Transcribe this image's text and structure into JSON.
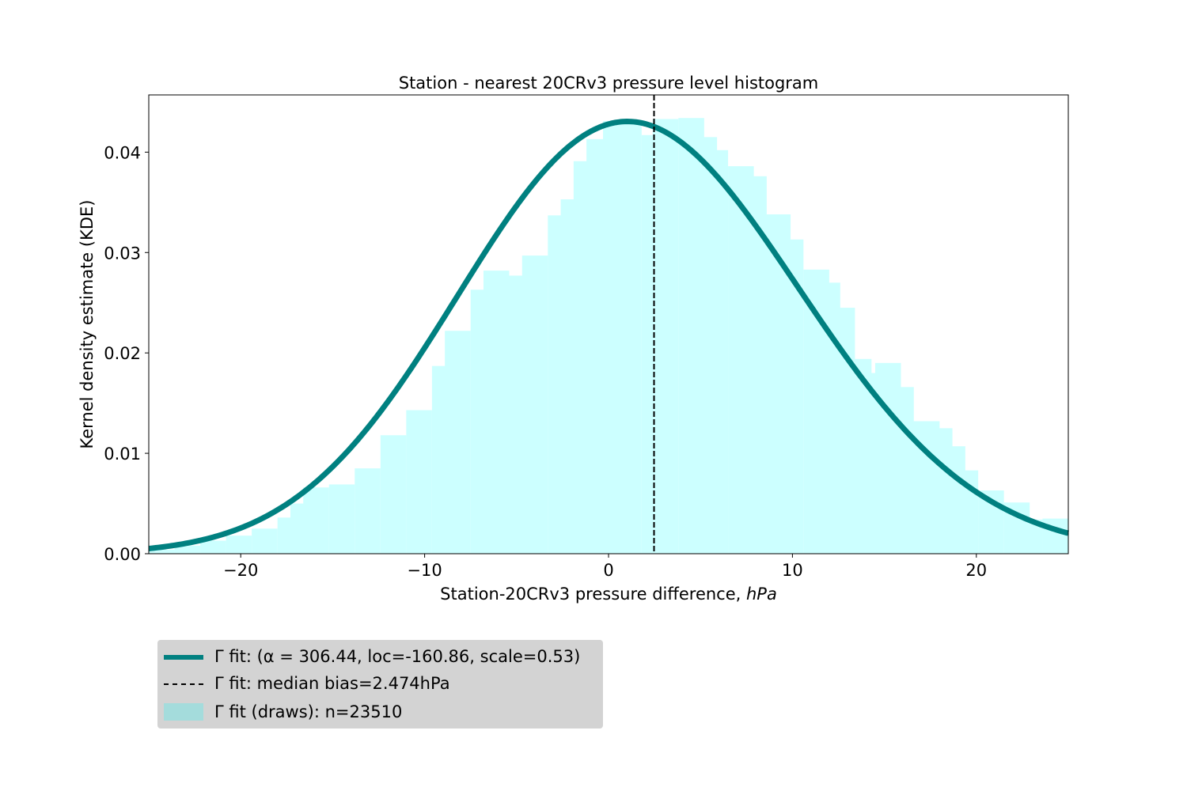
{
  "chart_data": {
    "type": "bar",
    "title": "Station - nearest 20CRv3 pressure level histogram",
    "xlabel": "Station-20CRv3 pressure difference, ",
    "xlabel_unit": "hPa",
    "ylabel": "Kernel density estimate (KDE)",
    "xlim": [
      -25,
      25
    ],
    "ylim": [
      0,
      0.0457
    ],
    "x_ticks": [
      -20,
      -10,
      0,
      10,
      20
    ],
    "x_tick_labels": [
      "−20",
      "−10",
      "0",
      "10",
      "20"
    ],
    "y_ticks": [
      0.0,
      0.01,
      0.02,
      0.03,
      0.04
    ],
    "y_tick_labels": [
      "0.00",
      "0.01",
      "0.02",
      "0.03",
      "0.04"
    ],
    "grid": false,
    "legend_placement": "below-left",
    "colors": {
      "fit_line": "#008080",
      "histogram": "#ccffff",
      "legend_patch": "#a4dcdc",
      "median_line": "#000000",
      "legend_bg": "#d3d3d3"
    },
    "histogram": {
      "bin_width": 1.4,
      "bins": [
        {
          "x0": -25.0,
          "height": 0.0004
        },
        {
          "x0": -23.6,
          "height": 0.0008
        },
        {
          "x0": -22.2,
          "height": 0.0013
        },
        {
          "x0": -20.8,
          "height": 0.0018
        },
        {
          "x0": -19.4,
          "height": 0.0025
        },
        {
          "x0": -18.0,
          "height": 0.0036
        },
        {
          "x0": -17.3,
          "height": 0.005
        },
        {
          "x0": -16.6,
          "height": 0.0066
        },
        {
          "x0": -15.2,
          "height": 0.0069
        },
        {
          "x0": -13.8,
          "height": 0.0085
        },
        {
          "x0": -12.4,
          "height": 0.0118
        },
        {
          "x0": -11.0,
          "height": 0.0143
        },
        {
          "x0": -9.6,
          "height": 0.0187
        },
        {
          "x0": -8.9,
          "height": 0.0222
        },
        {
          "x0": -7.5,
          "height": 0.0263
        },
        {
          "x0": -6.8,
          "height": 0.0282
        },
        {
          "x0": -5.4,
          "height": 0.0277
        },
        {
          "x0": -4.7,
          "height": 0.0297
        },
        {
          "x0": -3.3,
          "height": 0.0337
        },
        {
          "x0": -2.6,
          "height": 0.0353
        },
        {
          "x0": -1.9,
          "height": 0.0391
        },
        {
          "x0": -1.2,
          "height": 0.0413
        },
        {
          "x0": -0.4,
          "height": 0.0399
        },
        {
          "x0": -0.3,
          "height": 0.0431
        },
        {
          "x0": 0.4,
          "height": 0.043
        },
        {
          "x0": 1.8,
          "height": 0.0417
        },
        {
          "x0": 2.4,
          "height": 0.0433
        },
        {
          "x0": 3.8,
          "height": 0.0434
        },
        {
          "x0": 4.5,
          "height": 0.0415
        },
        {
          "x0": 5.1,
          "height": 0.0402
        },
        {
          "x0": 6.5,
          "height": 0.0386
        },
        {
          "x0": 7.2,
          "height": 0.0376
        },
        {
          "x0": 8.5,
          "height": 0.0338
        },
        {
          "x0": 9.2,
          "height": 0.0313
        },
        {
          "x0": 10.6,
          "height": 0.0283
        },
        {
          "x0": 11.2,
          "height": 0.027
        },
        {
          "x0": 12.0,
          "height": 0.0245
        },
        {
          "x0": 12.9,
          "height": 0.0194
        },
        {
          "x0": 13.6,
          "height": 0.018
        },
        {
          "x0": 14.5,
          "height": 0.019
        },
        {
          "x0": 15.2,
          "height": 0.0166
        },
        {
          "x0": 15.9,
          "height": 0.0131
        },
        {
          "x0": 16.6,
          "height": 0.0132
        },
        {
          "x0": 17.3,
          "height": 0.0125
        },
        {
          "x0": 18.0,
          "height": 0.0107
        },
        {
          "x0": 18.7,
          "height": 0.0083
        },
        {
          "x0": 20.1,
          "height": 0.0063
        },
        {
          "x0": 21.5,
          "height": 0.0051
        },
        {
          "x0": 22.2,
          "height": 0.0034
        },
        {
          "x0": 23.6,
          "height": 0.0035
        }
      ]
    },
    "gamma_fit": {
      "alpha": 306.44,
      "loc": -160.86,
      "scale": 0.53
    },
    "median_bias": 2.474,
    "legend": [
      {
        "label": "Γ fit: (α = 306.44, loc=-160.86, scale=0.53)",
        "style": "line"
      },
      {
        "label": "Γ fit: median bias=2.474hPa",
        "style": "dashed"
      },
      {
        "label": "Γ fit (draws): n=23510",
        "style": "patch"
      }
    ]
  }
}
